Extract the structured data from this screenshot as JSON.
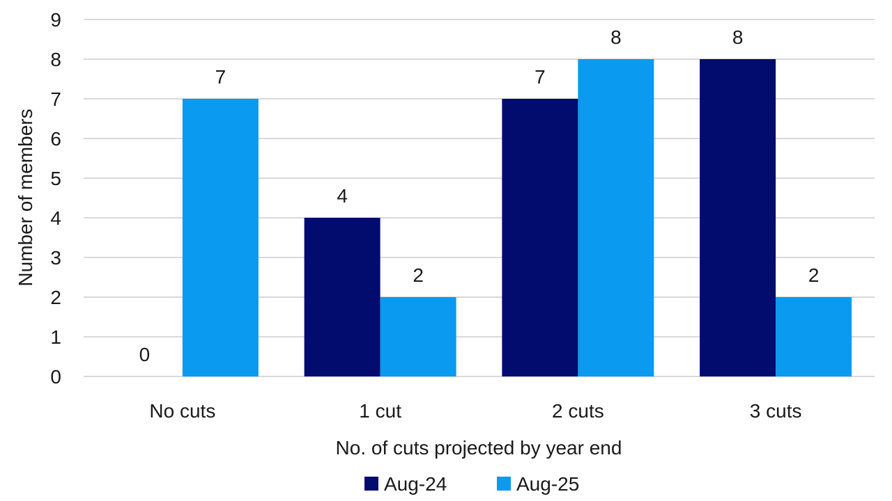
{
  "chart_data": {
    "type": "bar",
    "categories": [
      "No cuts",
      "1 cut",
      "2 cuts",
      "3 cuts"
    ],
    "series": [
      {
        "name": "Aug-24",
        "color": "#020b6e",
        "values": [
          0,
          4,
          7,
          8
        ]
      },
      {
        "name": "Aug-25",
        "color": "#0a9aef",
        "values": [
          7,
          2,
          8,
          2
        ]
      }
    ],
    "xlabel": "No. of cuts projected by year end",
    "ylabel": "Number of members",
    "ylim": [
      0,
      9
    ],
    "yticks": [
      0,
      1,
      2,
      3,
      4,
      5,
      6,
      7,
      8,
      9
    ],
    "grid": true,
    "legend_position": "bottom",
    "data_labels": true
  }
}
